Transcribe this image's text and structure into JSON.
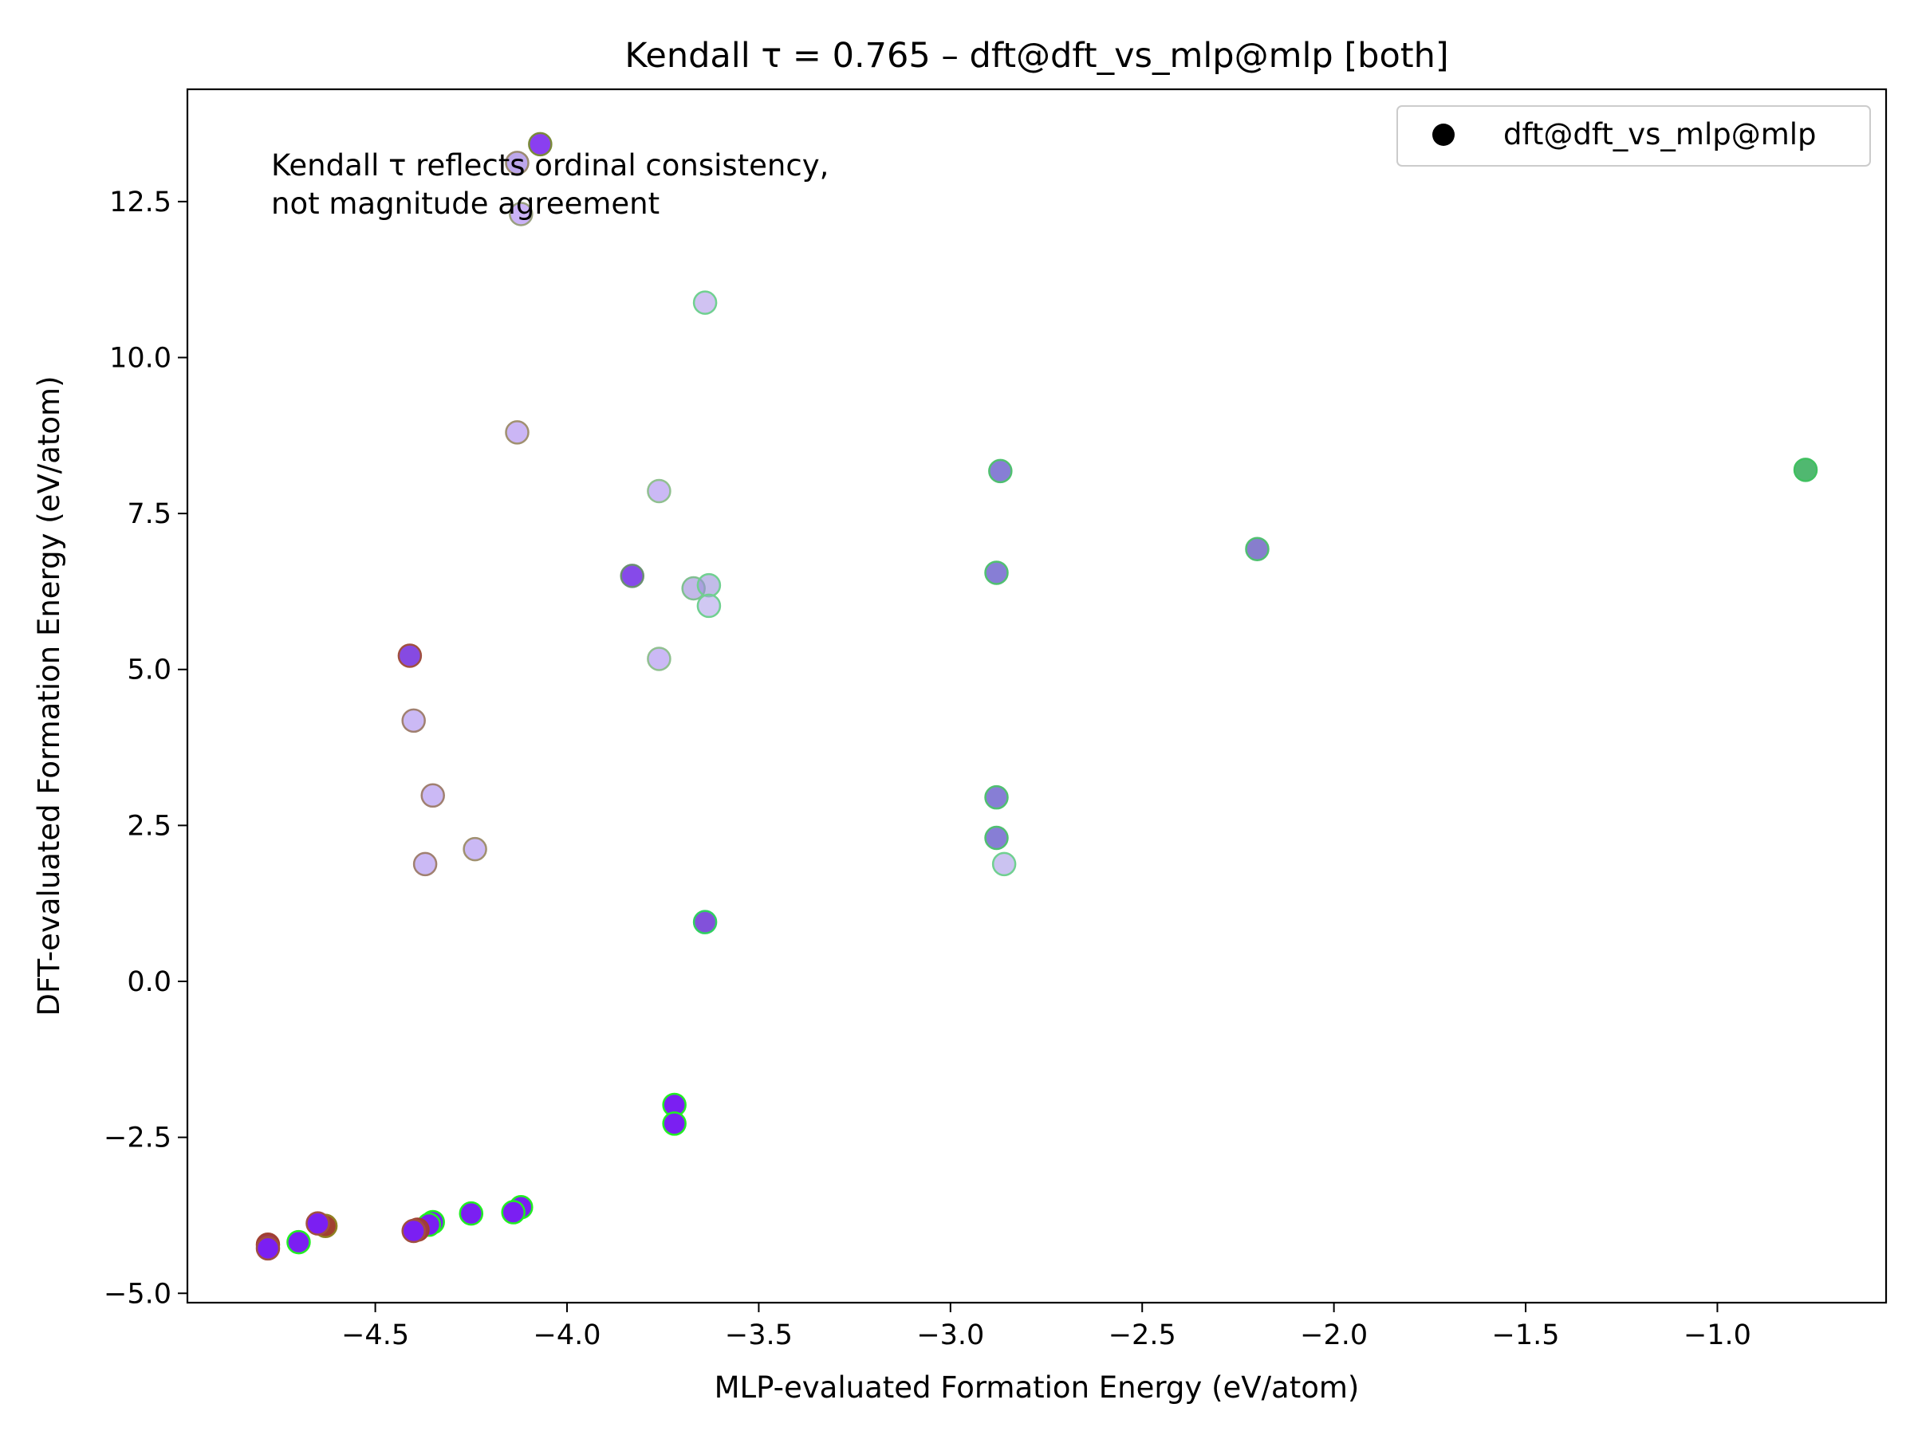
{
  "chart_data": {
    "type": "scatter",
    "title": "Kendall τ = 0.765 – dft@dft_vs_mlp@mlp [both]",
    "xlabel": "MLP-evaluated Formation Energy (eV/atom)",
    "ylabel": "DFT-evaluated Formation Energy (eV/atom)",
    "xlim": [
      -4.99,
      -0.56
    ],
    "ylim": [
      -5.15,
      14.3
    ],
    "xticks": [
      -4.5,
      -4.0,
      -3.5,
      -3.0,
      -2.5,
      -2.0,
      -1.5,
      -1.0
    ],
    "xtick_labels": [
      "−4.5",
      "−4.0",
      "−3.5",
      "−3.0",
      "−2.5",
      "−2.0",
      "−1.5",
      "−1.0"
    ],
    "yticks": [
      -5.0,
      -2.5,
      0.0,
      2.5,
      5.0,
      7.5,
      10.0,
      12.5
    ],
    "ytick_labels": [
      "−5.0",
      "−2.5",
      "0.0",
      "2.5",
      "5.0",
      "7.5",
      "10.0",
      "12.5"
    ],
    "grid": false,
    "legend_position": "top-right",
    "annotation": [
      "Kendall τ reflects ordinal consistency,",
      "not magnitude agreement"
    ],
    "series": [
      {
        "name": "dft@dft_vs_mlp@mlp",
        "legend_color": "#000000",
        "points": [
          {
            "x": -4.07,
            "y": 13.42,
            "fill": "#8a3ff0",
            "edge": "#7a8a3a",
            "alpha": 1.0
          },
          {
            "x": -4.13,
            "y": 13.12,
            "fill": "#9a78e0",
            "edge": "#9a8a70",
            "alpha": 0.65
          },
          {
            "x": -4.12,
            "y": 12.3,
            "fill": "#a880f0",
            "edge": "#9aa080",
            "alpha": 0.6
          },
          {
            "x": -3.64,
            "y": 10.88,
            "fill": "#a990e8",
            "edge": "#70d090",
            "alpha": 0.55
          },
          {
            "x": -4.13,
            "y": 8.8,
            "fill": "#a986ee",
            "edge": "#a09070",
            "alpha": 0.6
          },
          {
            "x": -3.76,
            "y": 7.86,
            "fill": "#a98aee",
            "edge": "#90c090",
            "alpha": 0.6
          },
          {
            "x": -2.87,
            "y": 8.18,
            "fill": "#7a70d0",
            "edge": "#50c070",
            "alpha": 0.9
          },
          {
            "x": -0.77,
            "y": 8.2,
            "fill": "#50b870",
            "edge": "#40c060",
            "alpha": 1.0
          },
          {
            "x": -3.83,
            "y": 6.5,
            "fill": "#8040e8",
            "edge": "#6a9070",
            "alpha": 0.95
          },
          {
            "x": -3.67,
            "y": 6.3,
            "fill": "#9a88d8",
            "edge": "#80c090",
            "alpha": 0.6
          },
          {
            "x": -3.63,
            "y": 6.35,
            "fill": "#9a90d8",
            "edge": "#70d090",
            "alpha": 0.6
          },
          {
            "x": -3.63,
            "y": 6.02,
            "fill": "#a99be8",
            "edge": "#70d090",
            "alpha": 0.55
          },
          {
            "x": -2.88,
            "y": 6.55,
            "fill": "#7a70d0",
            "edge": "#50c070",
            "alpha": 0.9
          },
          {
            "x": -2.2,
            "y": 6.93,
            "fill": "#7a70c8",
            "edge": "#50c070",
            "alpha": 0.9
          },
          {
            "x": -4.41,
            "y": 5.22,
            "fill": "#8040e0",
            "edge": "#a05040",
            "alpha": 0.95
          },
          {
            "x": -3.76,
            "y": 5.17,
            "fill": "#a98aee",
            "edge": "#90c090",
            "alpha": 0.6
          },
          {
            "x": -4.4,
            "y": 4.18,
            "fill": "#a98aee",
            "edge": "#a08070",
            "alpha": 0.6
          },
          {
            "x": -4.35,
            "y": 2.98,
            "fill": "#a98aee",
            "edge": "#a08070",
            "alpha": 0.6
          },
          {
            "x": -4.24,
            "y": 2.12,
            "fill": "#a98aee",
            "edge": "#a09070",
            "alpha": 0.6
          },
          {
            "x": -4.37,
            "y": 1.88,
            "fill": "#a98aee",
            "edge": "#a08070",
            "alpha": 0.6
          },
          {
            "x": -2.88,
            "y": 2.95,
            "fill": "#7a70d0",
            "edge": "#50c070",
            "alpha": 0.9
          },
          {
            "x": -2.88,
            "y": 2.3,
            "fill": "#7a70d0",
            "edge": "#50c070",
            "alpha": 0.9
          },
          {
            "x": -2.86,
            "y": 1.88,
            "fill": "#a99be8",
            "edge": "#70d090",
            "alpha": 0.6
          },
          {
            "x": -3.64,
            "y": 0.95,
            "fill": "#7b48d8",
            "edge": "#30d060",
            "alpha": 0.95
          },
          {
            "x": -3.72,
            "y": -1.98,
            "fill": "#7b1ff2",
            "edge": "#22ee22",
            "alpha": 1.0
          },
          {
            "x": -3.72,
            "y": -2.28,
            "fill": "#7b1ff2",
            "edge": "#22ee22",
            "alpha": 1.0
          },
          {
            "x": -4.12,
            "y": -3.62,
            "fill": "#7b1ff2",
            "edge": "#22ee22",
            "alpha": 1.0
          },
          {
            "x": -4.14,
            "y": -3.7,
            "fill": "#7b1ff2",
            "edge": "#22ee22",
            "alpha": 1.0
          },
          {
            "x": -4.25,
            "y": -3.72,
            "fill": "#7b1ff2",
            "edge": "#22ee22",
            "alpha": 1.0
          },
          {
            "x": -4.35,
            "y": -3.86,
            "fill": "#7b1ff2",
            "edge": "#22ee22",
            "alpha": 1.0
          },
          {
            "x": -4.36,
            "y": -3.9,
            "fill": "#7b1ff2",
            "edge": "#22ee22",
            "alpha": 1.0
          },
          {
            "x": -4.39,
            "y": -3.98,
            "fill": "#a03848",
            "edge": "#a04030",
            "alpha": 1.0
          },
          {
            "x": -4.4,
            "y": -4.0,
            "fill": "#7b1ff2",
            "edge": "#a05040",
            "alpha": 1.0
          },
          {
            "x": -4.63,
            "y": -3.92,
            "fill": "#a04030",
            "edge": "#908020",
            "alpha": 1.0
          },
          {
            "x": -4.65,
            "y": -3.88,
            "fill": "#7b1ff2",
            "edge": "#a05040",
            "alpha": 1.0
          },
          {
            "x": -4.7,
            "y": -4.18,
            "fill": "#7b1ff2",
            "edge": "#22ee22",
            "alpha": 1.0
          },
          {
            "x": -4.78,
            "y": -4.22,
            "fill": "#a03848",
            "edge": "#a04030",
            "alpha": 1.0
          },
          {
            "x": -4.78,
            "y": -4.28,
            "fill": "#7b1ff2",
            "edge": "#a05040",
            "alpha": 1.0
          }
        ]
      }
    ]
  }
}
